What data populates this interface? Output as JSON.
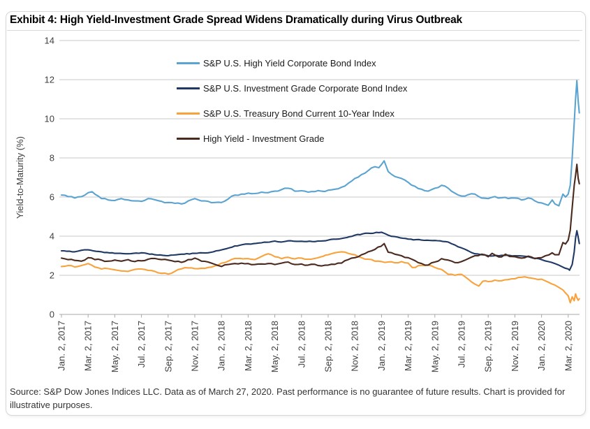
{
  "card": {
    "title": "Exhibit 4: High Yield-Investment Grade Spread Widens Dramatically during Virus Outbreak",
    "source_note": "Source: S&P Dow Jones Indices LLC. Data as of March 27, 2020. Past performance is no guarantee of future results. Chart is provided for illustrative purposes."
  },
  "chart_data": {
    "type": "line",
    "title": "Exhibit 4: High Yield-Investment Grade Spread Widens Dramatically during Virus Outbreak",
    "xlabel": "",
    "ylabel": "Yield-to-Maturity (%)",
    "ylim": [
      0,
      14
    ],
    "yticks": [
      0,
      2,
      4,
      6,
      8,
      10,
      12,
      14
    ],
    "grid": "horizontal",
    "gridline_color": "#c8c8c8",
    "axis_color": "#a8a8a8",
    "legend_position": "inside-top-center",
    "x_unit": "months since Jan 2, 2017 (data through Mar 27, 2020)",
    "xtick_months": [
      0,
      2,
      4,
      6,
      8,
      10,
      12,
      14,
      16,
      18,
      20,
      22,
      24,
      26,
      28,
      30,
      32,
      34,
      36,
      38
    ],
    "xtick_labels": [
      "Jan. 2, 2017",
      "Mar. 2, 2017",
      "May. 2, 2017",
      "Jul. 2, 2017",
      "Sep. 2, 2017",
      "Nov. 2, 2017",
      "Jan. 2, 2018",
      "Mar. 2, 2018",
      "May. 2, 2018",
      "Jul. 2, 2018",
      "Sep. 2, 2018",
      "Nov. 2, 2018",
      "Jan. 2, 2019",
      "Mar. 2, 2019",
      "May. 2, 2019",
      "Jul. 2, 2019",
      "Sep. 2, 2019",
      "Nov. 2, 2019",
      "Jan. 2, 2020",
      "Mar. 2, 2020"
    ],
    "series": [
      {
        "name": "S&P U.S. High Yield Corporate Bond Index",
        "color": "#5BA3D0",
        "noise": 0.045,
        "x": [
          0,
          0.5,
          1,
          1.5,
          2,
          2.3,
          3,
          3.5,
          4,
          4.5,
          5,
          5.5,
          6,
          6.5,
          7,
          7.5,
          8,
          8.5,
          9,
          9.5,
          10,
          10.5,
          11,
          11.5,
          12,
          12.5,
          13,
          13.5,
          14,
          14.5,
          15,
          15.5,
          16,
          16.5,
          17,
          17.5,
          18,
          18.5,
          19,
          19.5,
          20,
          20.5,
          21,
          21.5,
          22,
          22.5,
          23,
          23.5,
          23.8,
          24.2,
          24.5,
          25,
          25.5,
          26,
          26.5,
          27,
          27.5,
          28,
          28.5,
          29,
          29.5,
          30,
          30.5,
          31,
          31.5,
          32,
          32.5,
          33,
          33.5,
          34,
          34.5,
          35,
          35.5,
          36,
          36.5,
          36.8,
          37,
          37.3,
          37.6,
          37.8,
          38,
          38.15,
          38.3,
          38.45,
          38.55,
          38.65,
          38.75,
          38.83
        ],
        "y": [
          6.1,
          6.02,
          5.95,
          6.02,
          6.22,
          6.27,
          5.92,
          5.85,
          5.82,
          5.92,
          5.85,
          5.8,
          5.78,
          5.92,
          5.86,
          5.78,
          5.72,
          5.68,
          5.65,
          5.8,
          5.92,
          5.8,
          5.78,
          5.72,
          5.72,
          5.9,
          6.1,
          6.15,
          6.2,
          6.18,
          6.25,
          6.22,
          6.3,
          6.38,
          6.45,
          6.3,
          6.32,
          6.25,
          6.28,
          6.3,
          6.35,
          6.4,
          6.5,
          6.7,
          6.95,
          7.15,
          7.35,
          7.55,
          7.5,
          7.85,
          7.3,
          7.05,
          6.95,
          6.75,
          6.55,
          6.4,
          6.3,
          6.45,
          6.6,
          6.45,
          6.2,
          6.05,
          6.12,
          6.15,
          5.95,
          5.92,
          6.02,
          5.96,
          5.92,
          5.95,
          5.85,
          5.95,
          5.8,
          5.7,
          5.58,
          5.85,
          5.65,
          5.55,
          6.15,
          6.0,
          6.15,
          6.6,
          8.0,
          9.8,
          11.0,
          11.95,
          10.9,
          10.3
        ]
      },
      {
        "name": "S&P U.S. Investment Grade Corporate Bond Index",
        "color": "#1F3864",
        "noise": 0.022,
        "x": [
          0,
          1,
          1.5,
          2,
          3,
          4,
          5,
          6,
          7,
          8,
          9,
          10,
          11,
          12,
          13,
          14,
          15,
          16,
          16.5,
          17,
          18,
          19,
          20,
          21,
          22,
          23,
          24,
          24.5,
          25,
          26,
          27,
          28,
          29,
          29.5,
          30,
          30.5,
          31,
          31.5,
          32,
          33,
          34,
          35,
          36,
          36.5,
          37,
          37.5,
          38,
          38.1,
          38.3,
          38.45,
          38.55,
          38.65,
          38.75,
          38.83
        ],
        "y": [
          3.25,
          3.2,
          3.28,
          3.3,
          3.2,
          3.12,
          3.1,
          3.15,
          3.05,
          3.0,
          3.08,
          3.12,
          3.15,
          3.3,
          3.5,
          3.6,
          3.66,
          3.75,
          3.7,
          3.76,
          3.74,
          3.72,
          3.8,
          3.88,
          4.05,
          4.15,
          4.2,
          4.05,
          3.98,
          3.85,
          3.8,
          3.78,
          3.7,
          3.55,
          3.4,
          3.25,
          3.1,
          3.05,
          3.0,
          3.02,
          3.0,
          2.95,
          2.8,
          2.7,
          2.6,
          2.45,
          2.32,
          2.26,
          2.55,
          3.2,
          3.9,
          4.28,
          3.95,
          3.62
        ]
      },
      {
        "name": "S&P U.S. Treasury Bond Current 10-Year Index",
        "color": "#F9A23C",
        "noise": 0.035,
        "x": [
          0,
          0.5,
          1,
          1.5,
          2,
          2.5,
          3,
          3.5,
          4,
          4.5,
          5,
          5.5,
          6,
          6.5,
          7,
          7.5,
          8,
          8.5,
          9,
          9.5,
          10,
          10.5,
          11,
          11.5,
          12,
          12.5,
          13,
          14,
          14.5,
          15,
          15.5,
          16,
          16.5,
          17,
          17.5,
          18,
          18.5,
          19,
          20,
          20.5,
          21,
          21.5,
          22,
          22.5,
          23,
          23.5,
          24,
          24.5,
          25,
          25.5,
          26,
          26.3,
          27,
          27.5,
          28,
          28.5,
          29,
          29.5,
          30,
          30.5,
          31,
          31.3,
          31.6,
          32,
          32.5,
          33,
          33.5,
          34,
          34.5,
          35,
          35.5,
          36,
          36.5,
          37,
          37.3,
          37.6,
          38,
          38.15,
          38.3,
          38.45,
          38.55,
          38.65,
          38.75,
          38.83
        ],
        "y": [
          2.45,
          2.5,
          2.42,
          2.5,
          2.6,
          2.42,
          2.32,
          2.34,
          2.28,
          2.22,
          2.2,
          2.3,
          2.32,
          2.25,
          2.2,
          2.1,
          2.06,
          2.2,
          2.33,
          2.38,
          2.34,
          2.36,
          2.4,
          2.48,
          2.62,
          2.72,
          2.86,
          2.85,
          2.8,
          2.96,
          3.1,
          2.95,
          2.85,
          2.92,
          2.84,
          2.88,
          2.82,
          2.86,
          3.05,
          3.15,
          3.2,
          3.12,
          3.05,
          2.9,
          2.82,
          2.72,
          2.7,
          2.68,
          2.64,
          2.7,
          2.62,
          2.4,
          2.5,
          2.52,
          2.4,
          2.3,
          2.05,
          2.0,
          2.05,
          1.8,
          1.55,
          1.45,
          1.7,
          1.68,
          1.75,
          1.72,
          1.78,
          1.82,
          1.9,
          1.88,
          1.82,
          1.8,
          1.65,
          1.5,
          1.38,
          1.25,
          0.95,
          0.6,
          0.9,
          0.7,
          1.05,
          0.85,
          0.72,
          0.8
        ]
      },
      {
        "name": "High Yield - Investment Grade",
        "color": "#4A2A1E",
        "noise": 0.04,
        "x": [
          0,
          0.5,
          1,
          1.5,
          2,
          2.5,
          3,
          3.5,
          4,
          4.5,
          5,
          5.5,
          6,
          6.5,
          7,
          7.5,
          8,
          8.5,
          9,
          9.5,
          10,
          10.5,
          11,
          11.5,
          12,
          12.5,
          13,
          13.5,
          14,
          14.5,
          15,
          15.5,
          16,
          16.5,
          17,
          17.5,
          18,
          18.5,
          19,
          19.5,
          20,
          20.5,
          21,
          21.5,
          22,
          22.5,
          23,
          23.5,
          24.2,
          24.5,
          25,
          25.5,
          26,
          26.5,
          27,
          27.5,
          28,
          28.5,
          29,
          29.5,
          30,
          30.5,
          31,
          31.5,
          32,
          32.3,
          32.6,
          33,
          33.3,
          33.6,
          34,
          34.5,
          35,
          35.5,
          36,
          36.3,
          36.8,
          37,
          37.3,
          37.6,
          37.8,
          38,
          38.15,
          38.3,
          38.45,
          38.55,
          38.65,
          38.75,
          38.83
        ],
        "y": [
          2.88,
          2.8,
          2.76,
          2.72,
          2.9,
          2.8,
          2.78,
          2.72,
          2.78,
          2.72,
          2.8,
          2.7,
          2.74,
          2.82,
          2.86,
          2.8,
          2.78,
          2.7,
          2.66,
          2.8,
          2.88,
          2.72,
          2.68,
          2.56,
          2.45,
          2.55,
          2.6,
          2.62,
          2.6,
          2.55,
          2.58,
          2.6,
          2.55,
          2.62,
          2.68,
          2.55,
          2.58,
          2.52,
          2.56,
          2.48,
          2.52,
          2.56,
          2.62,
          2.8,
          2.9,
          3.05,
          3.2,
          3.32,
          3.62,
          3.18,
          3.08,
          3.0,
          2.9,
          2.75,
          2.6,
          2.52,
          2.68,
          2.85,
          2.78,
          2.65,
          2.7,
          2.85,
          3.0,
          3.08,
          2.95,
          3.12,
          3.0,
          2.94,
          3.08,
          2.96,
          2.95,
          2.88,
          2.98,
          2.85,
          2.9,
          3.0,
          3.15,
          3.05,
          3.05,
          3.67,
          3.6,
          3.8,
          4.3,
          5.45,
          6.6,
          7.1,
          7.67,
          6.95,
          6.68
        ]
      }
    ]
  }
}
